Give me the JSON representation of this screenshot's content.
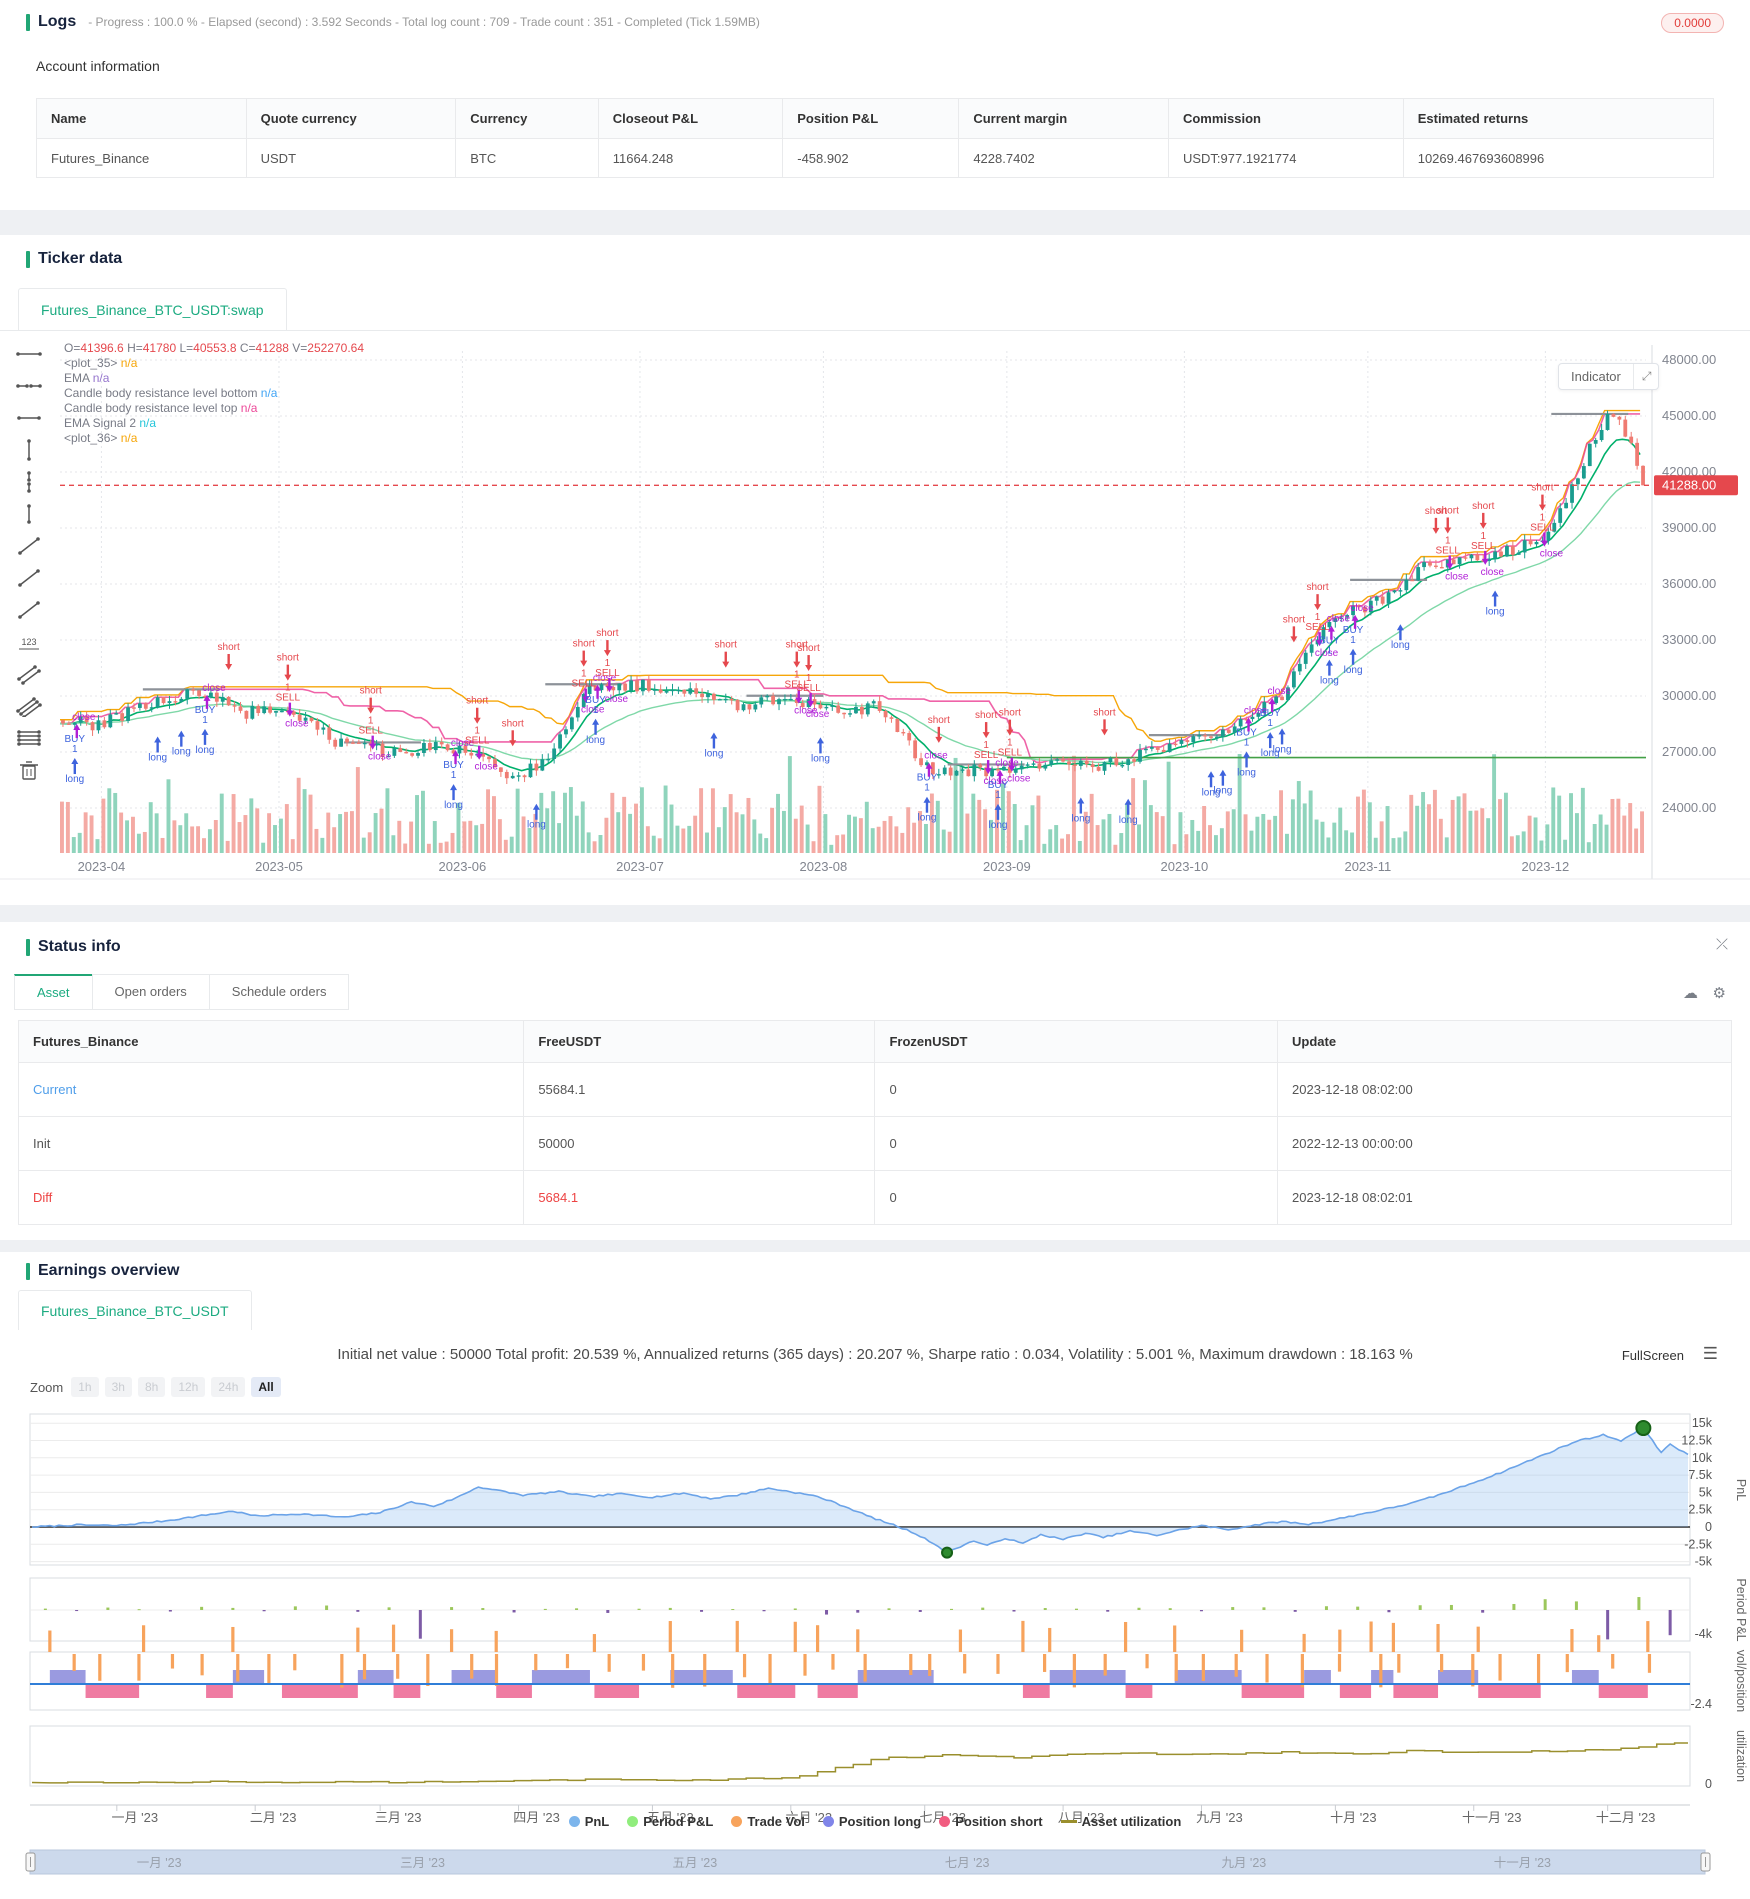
{
  "accent": "#21a675",
  "logs": {
    "title": "Logs",
    "subtitle": "- Progress : 100.0 % - Elapsed (second) : 3.592  Seconds - Total log count : 709 - Trade count : 351 - Completed (Tick 1.59MB)",
    "badge": "0.0000"
  },
  "account": {
    "title": "Account information",
    "headers": [
      "Name",
      "Quote currency",
      "Currency",
      "Closeout P&L",
      "Position P&L",
      "Current margin",
      "Commission",
      "Estimated returns"
    ],
    "row": [
      "Futures_Binance",
      "USDT",
      "BTC",
      "11664.248",
      "-458.902",
      "4228.7402",
      "USDT:977.1921774",
      "10269.467693608996"
    ]
  },
  "ticker": {
    "title": "Ticker data",
    "tab": "Futures_Binance_BTC_USDT:swap",
    "indicator_button": "Indicator",
    "legend_rows": [
      {
        "parts": [
          [
            "O=",
            "label"
          ],
          [
            "41396.6",
            "red"
          ],
          [
            " H=",
            "label"
          ],
          [
            "41780",
            "red"
          ],
          [
            " L=",
            "label"
          ],
          [
            "40553.8",
            "red"
          ],
          [
            " C=",
            "label"
          ],
          [
            "41288",
            "red"
          ],
          [
            " V=",
            "label"
          ],
          [
            "252270.64",
            "red"
          ]
        ]
      },
      {
        "parts": [
          [
            "<plot_35>  ",
            "label"
          ],
          [
            "n/a",
            "orange"
          ]
        ]
      },
      {
        "parts": [
          [
            "EMA  ",
            "label"
          ],
          [
            "n/a",
            "purple"
          ]
        ]
      },
      {
        "parts": [
          [
            "Candle body resistance level bottom  ",
            "label"
          ],
          [
            "n/a",
            "blue"
          ]
        ]
      },
      {
        "parts": [
          [
            "Candle body resistance level top  ",
            "label"
          ],
          [
            "n/a",
            "pink"
          ]
        ]
      },
      {
        "parts": [
          [
            "EMA Signal 2  ",
            "label"
          ],
          [
            "n/a",
            "teal"
          ]
        ]
      },
      {
        "parts": [
          [
            "<plot_36>  ",
            "label"
          ],
          [
            "n/a",
            "orange"
          ]
        ]
      }
    ],
    "legend_colors": {
      "label": "#787b86",
      "red": "#e5484d",
      "orange": "#f6a609",
      "purple": "#9575cd",
      "blue": "#42a5f5",
      "pink": "#ec4899",
      "teal": "#26c6da"
    },
    "price_tag": "41288.00",
    "tools": [
      "horizontal-ray",
      "horizontal-dots",
      "horizontal-segment",
      "vertical-ray",
      "vertical-dots",
      "vertical-segment",
      "trend-ray",
      "trend-line",
      "trend-segment",
      "price-label-123",
      "parallel-channel",
      "multi-channel",
      "horizontal-levels",
      "trash"
    ]
  },
  "status": {
    "title": "Status info",
    "tabs": [
      "Asset",
      "Open orders",
      "Schedule orders"
    ],
    "active_tab": 0,
    "headers": [
      "Futures_Binance",
      "FreeUSDT",
      "FrozenUSDT",
      "Update"
    ],
    "rows": [
      {
        "label": "Current",
        "style": "link",
        "cells": [
          "55684.1",
          "0",
          "2023-12-18 08:02:00"
        ]
      },
      {
        "label": "Init",
        "style": "plain",
        "cells": [
          "50000",
          "0",
          "2022-12-13 00:00:00"
        ]
      },
      {
        "label": "Diff",
        "style": "red",
        "cells": [
          "5684.1",
          "0",
          "2023-12-18 08:02:01"
        ]
      }
    ]
  },
  "earnings": {
    "title": "Earnings overview",
    "tab": "Futures_Binance_BTC_USDT",
    "stats": "Initial net value : 50000 Total profit: 20.539 %, Annualized returns (365 days) : 20.207 %, Sharpe ratio : 0.034, Volatility : 5.001 %, Maximum drawdown : 18.163 %",
    "fullscreen": "FullScreen",
    "zoom_label": "Zoom",
    "zoom_options": [
      "1h",
      "3h",
      "8h",
      "12h",
      "24h",
      "All"
    ],
    "zoom_active": "All",
    "legend": [
      {
        "label": "PnL",
        "color": "#7cb5ec",
        "type": "dot"
      },
      {
        "label": "Period P&L",
        "color": "#90ed7d",
        "type": "dot"
      },
      {
        "label": "Trade Vol",
        "color": "#f7a35c",
        "type": "dot"
      },
      {
        "label": "Position long",
        "color": "#8085e9",
        "type": "dot"
      },
      {
        "label": "Position short",
        "color": "#f15c80",
        "type": "dot"
      },
      {
        "label": "Asset utilization",
        "color": "#9a8f2d",
        "type": "line"
      }
    ]
  },
  "chart_data": [
    {
      "type": "candlestick",
      "id": "ticker",
      "title": "Futures_Binance_BTC_USDT:swap",
      "ohlcv": {
        "open": 41396.6,
        "high": 41780,
        "low": 40553.8,
        "close": 41288,
        "volume": 252270.64
      },
      "last_price": 41288,
      "y_ticks": [
        "48000.00",
        "45000.00",
        "42000.00",
        "39000.00",
        "36000.00",
        "33000.00",
        "30000.00",
        "27000.00",
        "24000.00"
      ],
      "y_values": [
        48000,
        45000,
        42000,
        39000,
        36000,
        33000,
        30000,
        27000,
        24000
      ],
      "x_ticks": [
        "2023-04",
        "2023-05",
        "2023-06",
        "2023-07",
        "2023-08",
        "2023-09",
        "2023-10",
        "2023-11",
        "2023-12"
      ],
      "x_days": [
        7,
        37,
        68,
        98,
        129,
        160,
        190,
        221,
        251
      ],
      "n_candles": 268,
      "price_anchors": [
        [
          0,
          28700
        ],
        [
          6,
          28400
        ],
        [
          14,
          29600
        ],
        [
          24,
          30200
        ],
        [
          31,
          29100
        ],
        [
          37,
          29300
        ],
        [
          46,
          27600
        ],
        [
          56,
          26900
        ],
        [
          64,
          27300
        ],
        [
          68,
          27100
        ],
        [
          76,
          25600
        ],
        [
          82,
          26500
        ],
        [
          88,
          30300
        ],
        [
          98,
          30600
        ],
        [
          106,
          30300
        ],
        [
          114,
          29500
        ],
        [
          122,
          29900
        ],
        [
          129,
          29200
        ],
        [
          138,
          29400
        ],
        [
          146,
          26100
        ],
        [
          154,
          26000
        ],
        [
          160,
          25900
        ],
        [
          168,
          26600
        ],
        [
          176,
          26300
        ],
        [
          184,
          27000
        ],
        [
          190,
          27500
        ],
        [
          198,
          28400
        ],
        [
          206,
          30000
        ],
        [
          214,
          34200
        ],
        [
          221,
          34800
        ],
        [
          230,
          36900
        ],
        [
          238,
          37400
        ],
        [
          246,
          37800
        ],
        [
          251,
          38800
        ],
        [
          256,
          41800
        ],
        [
          260,
          44600
        ],
        [
          262,
          45100
        ],
        [
          265,
          43300
        ],
        [
          268,
          41288
        ]
      ],
      "flat_support": {
        "price": 26700,
        "from": 160,
        "to": 268,
        "color": "#43a047"
      },
      "marker_words_above": [
        "short",
        "1",
        "SELL",
        "close"
      ],
      "marker_words_below": [
        "long",
        "1",
        "BUY",
        "close"
      ],
      "colors": {
        "up": "#1a9c8f",
        "down": "#ef7b72",
        "vol_up": "#8fd4bc",
        "vol_down": "#f4aaa4",
        "ema_fast": "#00b06b",
        "ema_slow": "#7fd8a8",
        "res_top": "#ec4899",
        "res_bottom": "#f6a609",
        "grey_seg": "#8d9299",
        "last_line": "#e5484d",
        "marker_red": "#e5484d",
        "marker_blue": "#3e63dd",
        "marker_purple": "#b01fd6"
      }
    },
    {
      "type": "area",
      "id": "pnl",
      "ylabel": "PnL",
      "y_ticks": [
        "15k",
        "12.5k",
        "10k",
        "7.5k",
        "5k",
        "2.5k",
        "0",
        "-2.5k",
        "-5k"
      ],
      "y_values": [
        15000,
        12500,
        10000,
        7500,
        5000,
        2500,
        0,
        -2500,
        -5000
      ],
      "anchors": [
        [
          0,
          0
        ],
        [
          10,
          300
        ],
        [
          19,
          200
        ],
        [
          30,
          900
        ],
        [
          45,
          2300
        ],
        [
          50,
          1600
        ],
        [
          60,
          1900
        ],
        [
          70,
          1400
        ],
        [
          78,
          2100
        ],
        [
          85,
          3600
        ],
        [
          90,
          3000
        ],
        [
          95,
          4200
        ],
        [
          100,
          5800
        ],
        [
          105,
          5200
        ],
        [
          110,
          4600
        ],
        [
          118,
          5100
        ],
        [
          125,
          4400
        ],
        [
          132,
          4800
        ],
        [
          139,
          4300
        ],
        [
          146,
          4900
        ],
        [
          152,
          4100
        ],
        [
          158,
          4600
        ],
        [
          165,
          5600
        ],
        [
          170,
          5100
        ],
        [
          176,
          4400
        ],
        [
          182,
          3000
        ],
        [
          188,
          1400
        ],
        [
          193,
          300
        ],
        [
          197,
          -700
        ],
        [
          200,
          -1600
        ],
        [
          203,
          -2900
        ],
        [
          205,
          -3700
        ],
        [
          208,
          -2800
        ],
        [
          211,
          -2000
        ],
        [
          214,
          -2700
        ],
        [
          218,
          -1600
        ],
        [
          222,
          -2400
        ],
        [
          226,
          -1100
        ],
        [
          231,
          -1800
        ],
        [
          236,
          -900
        ],
        [
          240,
          -1500
        ],
        [
          246,
          -600
        ],
        [
          252,
          -1200
        ],
        [
          258,
          -300
        ],
        [
          262,
          200
        ],
        [
          268,
          -400
        ],
        [
          274,
          300
        ],
        [
          280,
          800
        ],
        [
          286,
          400
        ],
        [
          292,
          1100
        ],
        [
          298,
          1900
        ],
        [
          304,
          2700
        ],
        [
          310,
          3600
        ],
        [
          316,
          4800
        ],
        [
          322,
          6200
        ],
        [
          328,
          7600
        ],
        [
          334,
          9200
        ],
        [
          340,
          10800
        ],
        [
          346,
          12400
        ],
        [
          352,
          13300
        ],
        [
          356,
          12500
        ],
        [
          358,
          13200
        ],
        [
          361,
          14300
        ],
        [
          363,
          12600
        ],
        [
          365,
          10700
        ],
        [
          367,
          12000
        ],
        [
          369,
          11200
        ],
        [
          371,
          10400
        ]
      ],
      "min_marker": {
        "day": 205,
        "value": -3700
      },
      "max_marker": {
        "day": 361,
        "value": 14300
      },
      "line_color": "#6ba3e8",
      "fill_color": "rgba(124,181,236,0.28)"
    },
    {
      "type": "bar",
      "id": "period_pnl",
      "ylabel": "Period P&L",
      "y_tick": "-4k",
      "week_values": [
        200,
        -150,
        350,
        120,
        -220,
        450,
        300,
        -180,
        520,
        640,
        -260,
        380,
        -4100,
        420,
        280,
        -350,
        160,
        240,
        -420,
        180,
        300,
        -260,
        140,
        -180,
        220,
        -650,
        -380,
        240,
        -280,
        160,
        340,
        -220,
        280,
        190,
        -240,
        320,
        260,
        -180,
        420,
        380,
        -260,
        540,
        480,
        -320,
        680,
        720,
        -380,
        860,
        1540,
        1230,
        -4200,
        1850,
        -3600
      ],
      "pos_color": "#9cc75c",
      "neg_color": "#7d5ba6"
    },
    {
      "type": "bands",
      "id": "vol_position",
      "ylabel": "vol/position",
      "y_tick": "-2.4",
      "long_color": "#9a9ae0",
      "short_color": "#ef7ba2",
      "vol_color": "#f7a35c",
      "line_color": "#2f7ed8"
    },
    {
      "type": "line",
      "id": "utilization",
      "ylabel": "utilization",
      "y_tick": "0",
      "anchors": [
        [
          0,
          0.05
        ],
        [
          40,
          0.06
        ],
        [
          80,
          0.055
        ],
        [
          120,
          0.09
        ],
        [
          150,
          0.085
        ],
        [
          170,
          0.12
        ],
        [
          190,
          0.4
        ],
        [
          205,
          0.44
        ],
        [
          220,
          0.41
        ],
        [
          240,
          0.47
        ],
        [
          260,
          0.45
        ],
        [
          280,
          0.48
        ],
        [
          300,
          0.46
        ],
        [
          310,
          0.51
        ],
        [
          320,
          0.48
        ],
        [
          340,
          0.5
        ],
        [
          355,
          0.53
        ],
        [
          365,
          0.6
        ],
        [
          371,
          0.64
        ]
      ],
      "color": "#9a8f2d"
    },
    {
      "type": "axis",
      "id": "earnings_x",
      "month_labels": [
        "一月 '23",
        "二月 '23",
        "三月 '23",
        "四月 '23",
        "五月 '23",
        "六月 '23",
        "七月 '23",
        "八月 '23",
        "九月 '23",
        "十月 '23",
        "十一月 '23",
        "十二月 '23"
      ],
      "month_days": [
        19,
        50,
        78,
        109,
        139,
        170,
        200,
        231,
        262,
        292,
        323,
        353
      ],
      "navigator_labels": [
        "一月 '23",
        "三月 '23",
        "五月 '23",
        "七月 '23",
        "九月 '23",
        "十一月 '23"
      ],
      "navigator_days": [
        19,
        78,
        139,
        200,
        262,
        323
      ]
    }
  ]
}
